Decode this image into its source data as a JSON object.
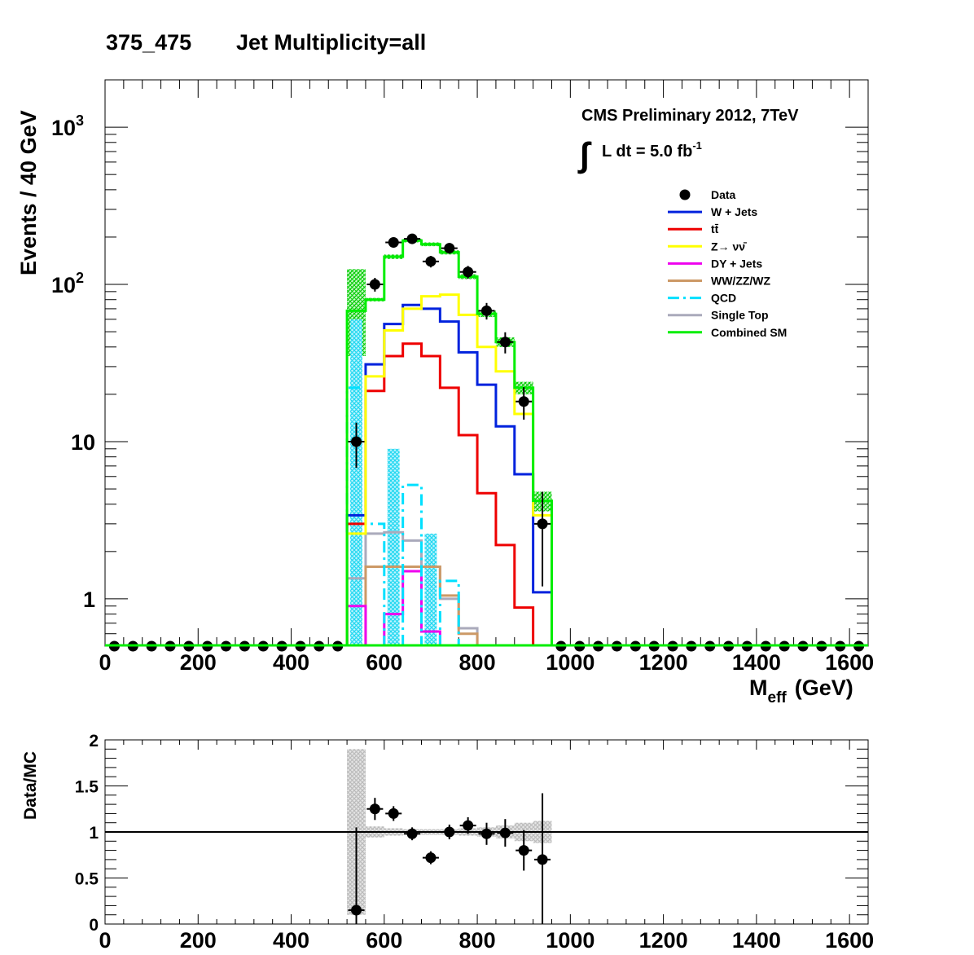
{
  "header": {
    "region": "375_475",
    "selection": "Jet Multiplicity=all"
  },
  "annotation": {
    "experiment": "CMS Preliminary 2012, 7TeV",
    "lumi_prefix": "L dt = 5.0 fb",
    "lumi_exp": "-1"
  },
  "colors": {
    "data": "#000000",
    "wjets": "#0022dd",
    "ttbar": "#ee0000",
    "znunu": "#ffff00",
    "dy": "#ee00ee",
    "diboson": "#cc9966",
    "qcd": "#00e0ff",
    "singletop": "#aaaabb",
    "combined": "#00ee00",
    "ratio_band": "#cccccc"
  },
  "chart_data": [
    {
      "type": "line",
      "ylabel": "Events / 40 GeV",
      "xlabel_main": "M",
      "xlabel_sub": "eff",
      "xlabel_unit": "(GeV)",
      "xlim": [
        0,
        1640
      ],
      "ylim": [
        0.5,
        2000
      ],
      "log_y": true,
      "x_ticks": [
        "0",
        "200",
        "400",
        "600",
        "800",
        "1000",
        "1200",
        "1400",
        "1600"
      ],
      "y_ticks": [
        {
          "value": 1,
          "label": "1"
        },
        {
          "value": 10,
          "label": "10"
        },
        {
          "value": 100,
          "label": "10",
          "exp": "2"
        },
        {
          "value": 1000,
          "label": "10",
          "exp": "3"
        }
      ],
      "legend_position": "top-right",
      "legend": [
        {
          "label": "Data",
          "style": "marker",
          "color_key": "data"
        },
        {
          "label": "W + Jets",
          "style": "line",
          "color_key": "wjets"
        },
        {
          "label": "tt̄",
          "style": "line",
          "color_key": "ttbar"
        },
        {
          "label": "Z→ νν̄",
          "style": "line",
          "color_key": "znunu"
        },
        {
          "label": "DY + Jets",
          "style": "line",
          "color_key": "dy"
        },
        {
          "label": "WW/ZZ/WZ",
          "style": "line",
          "color_key": "diboson"
        },
        {
          "label": "QCD",
          "style": "dashdot",
          "color_key": "qcd"
        },
        {
          "label": "Single Top",
          "style": "line",
          "color_key": "singletop"
        },
        {
          "label": "Combined SM",
          "style": "line",
          "color_key": "combined"
        }
      ],
      "bin_edges": [
        520,
        560,
        600,
        640,
        680,
        720,
        760,
        800,
        840,
        880,
        920,
        960
      ],
      "series": [
        {
          "name": "Single Top",
          "color_key": "singletop",
          "values": [
            1.35,
            2.6,
            2.65,
            2.35,
            1.6,
            1.0,
            0.65,
            0,
            0,
            0,
            0
          ]
        },
        {
          "name": "WW/ZZ/WZ",
          "color_key": "diboson",
          "values": [
            0,
            1.6,
            1.6,
            1.6,
            1.6,
            1.05,
            0.6,
            0,
            0,
            0,
            0
          ]
        },
        {
          "name": "DY + Jets",
          "color_key": "dy",
          "values": [
            0.9,
            0,
            0.8,
            1.5,
            0.62,
            0,
            0,
            0,
            0,
            0,
            0
          ]
        },
        {
          "name": "QCD",
          "color_key": "qcd",
          "values": [
            22,
            3.0,
            0,
            5.3,
            0,
            1.3,
            0,
            0,
            0,
            0,
            0
          ]
        },
        {
          "name": "tt̄",
          "color_key": "ttbar",
          "values": [
            3.0,
            21,
            35,
            42,
            35,
            22,
            11,
            4.7,
            2.2,
            0.88,
            0
          ]
        },
        {
          "name": "W + Jets",
          "color_key": "wjets",
          "values": [
            3.4,
            31,
            56,
            74,
            70,
            58,
            37,
            23,
            12.5,
            6.2,
            1.1
          ]
        },
        {
          "name": "Z→ νν̄",
          "color_key": "znunu",
          "values": [
            2.6,
            26,
            51,
            70,
            84,
            86,
            64,
            40,
            28,
            15,
            3.4
          ]
        },
        {
          "name": "Combined SM",
          "color_key": "combined",
          "values": [
            68,
            80,
            150,
            190,
            180,
            160,
            112,
            65,
            43,
            22,
            4.2
          ]
        }
      ],
      "combined_band": [
        [
          35,
          125
        ],
        [
          78,
          82
        ],
        [
          145,
          155
        ],
        [
          185,
          195
        ],
        [
          175,
          185
        ],
        [
          155,
          165
        ],
        [
          108,
          116
        ],
        [
          62,
          68
        ],
        [
          40,
          46
        ],
        [
          20,
          24
        ],
        [
          3.6,
          4.8
        ]
      ],
      "qcd_band": [
        [
          0.5,
          60
        ],
        null,
        [
          0.5,
          9.0
        ],
        null,
        [
          0.5,
          2.6
        ],
        null
      ],
      "qcd_band_bins": [
        0,
        2,
        4
      ],
      "data_points": {
        "x": [
          540,
          580,
          620,
          660,
          700,
          740,
          780,
          820,
          860,
          900,
          940
        ],
        "y": [
          10,
          100,
          185,
          195,
          140,
          170,
          120,
          68,
          43,
          18,
          3
        ],
        "err": [
          3.2,
          10,
          13.6,
          14,
          11.8,
          13,
          11,
          8.2,
          6.6,
          4.2,
          1.8
        ]
      },
      "zero_markers_x": [
        20,
        60,
        100,
        140,
        180,
        220,
        260,
        300,
        340,
        380,
        420,
        460,
        500,
        980,
        1020,
        1060,
        1100,
        1140,
        1180,
        1220,
        1260,
        1300,
        1340,
        1380,
        1420,
        1460,
        1500,
        1540,
        1580,
        1620
      ]
    },
    {
      "type": "scatter",
      "ylabel": "Data/MC",
      "xlim": [
        0,
        1640
      ],
      "ylim": [
        0,
        2
      ],
      "x_ticks": [
        "0",
        "200",
        "400",
        "600",
        "800",
        "1000",
        "1200",
        "1400",
        "1600"
      ],
      "y_ticks": [
        "0",
        "0.5",
        "1",
        "1.5",
        "2"
      ],
      "reference_line": 1,
      "x": [
        540,
        580,
        620,
        660,
        700,
        740,
        780,
        820,
        860,
        900,
        940
      ],
      "y": [
        0.15,
        1.25,
        1.2,
        0.98,
        0.72,
        1.0,
        1.07,
        0.98,
        0.99,
        0.8,
        0.7
      ],
      "err": [
        0.9,
        0.12,
        0.08,
        0.07,
        0.07,
        0.08,
        0.09,
        0.12,
        0.15,
        0.22,
        0.72
      ],
      "band": [
        [
          0.1,
          1.9
        ],
        [
          0.94,
          1.06
        ],
        [
          0.96,
          1.04
        ],
        [
          0.97,
          1.03
        ],
        [
          0.97,
          1.03
        ],
        [
          0.97,
          1.03
        ],
        [
          0.96,
          1.04
        ],
        [
          0.95,
          1.05
        ],
        [
          0.93,
          1.07
        ],
        [
          0.9,
          1.1
        ],
        [
          0.88,
          1.12
        ]
      ]
    }
  ]
}
